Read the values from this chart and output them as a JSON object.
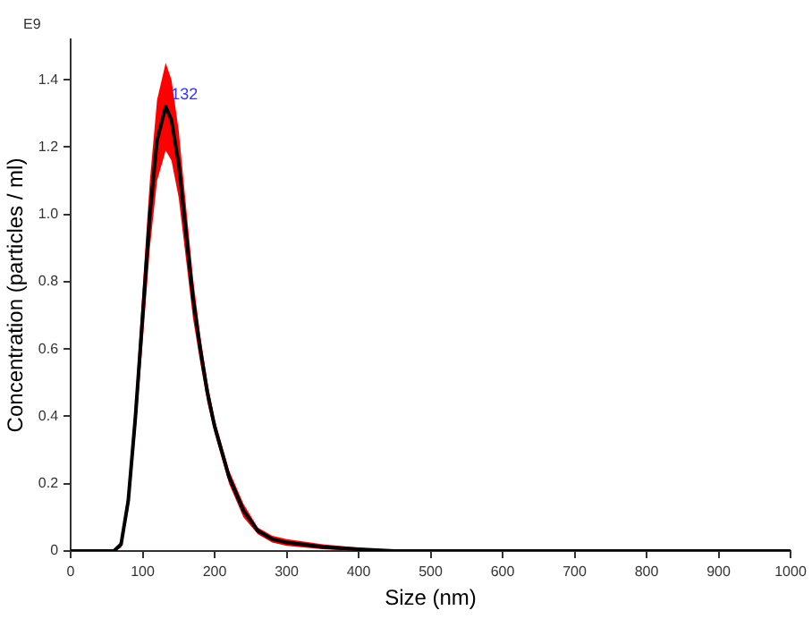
{
  "chart_data": {
    "type": "line",
    "xlabel": "Size (nm)",
    "ylabel": "Concentration (particles / ml)",
    "annotations": [
      "E9",
      {
        "text": "132",
        "x": 132,
        "y": 1.32
      }
    ],
    "x": [
      0,
      50,
      60,
      70,
      80,
      90,
      100,
      110,
      120,
      132,
      140,
      150,
      160,
      170,
      180,
      190,
      200,
      220,
      240,
      260,
      280,
      300,
      350,
      400,
      450,
      1000
    ],
    "series": [
      {
        "color": "#000000",
        "values": [
          0,
          0,
          0,
          0.02,
          0.15,
          0.4,
          0.7,
          1.0,
          1.22,
          1.32,
          1.28,
          1.15,
          0.95,
          0.75,
          0.6,
          0.47,
          0.37,
          0.22,
          0.12,
          0.06,
          0.035,
          0.025,
          0.012,
          0.005,
          0,
          0
        ],
        "lower": [
          0,
          0,
          0,
          0.01,
          0.12,
          0.35,
          0.62,
          0.9,
          1.1,
          1.19,
          1.16,
          1.05,
          0.87,
          0.69,
          0.56,
          0.44,
          0.35,
          0.2,
          0.1,
          0.05,
          0.025,
          0.015,
          0.005,
          0,
          0,
          0
        ],
        "upper": [
          0,
          0,
          0,
          0.03,
          0.18,
          0.45,
          0.78,
          1.1,
          1.34,
          1.45,
          1.4,
          1.25,
          1.03,
          0.81,
          0.64,
          0.5,
          0.39,
          0.24,
          0.14,
          0.07,
          0.045,
          0.035,
          0.02,
          0.01,
          0,
          0
        ]
      }
    ],
    "xlim": [
      0,
      1000
    ],
    "xticks": [
      0,
      100,
      200,
      300,
      400,
      500,
      600,
      700,
      800,
      900,
      1000
    ],
    "ylim": [
      0,
      1.52
    ],
    "yticks": [
      0,
      0.2,
      0.4,
      0.6,
      0.8,
      {
        "value": 1,
        "label": "1.0"
      },
      1.2,
      1.4
    ],
    "grid": false,
    "legend": false,
    "marker": "none",
    "line_style": "solid"
  }
}
